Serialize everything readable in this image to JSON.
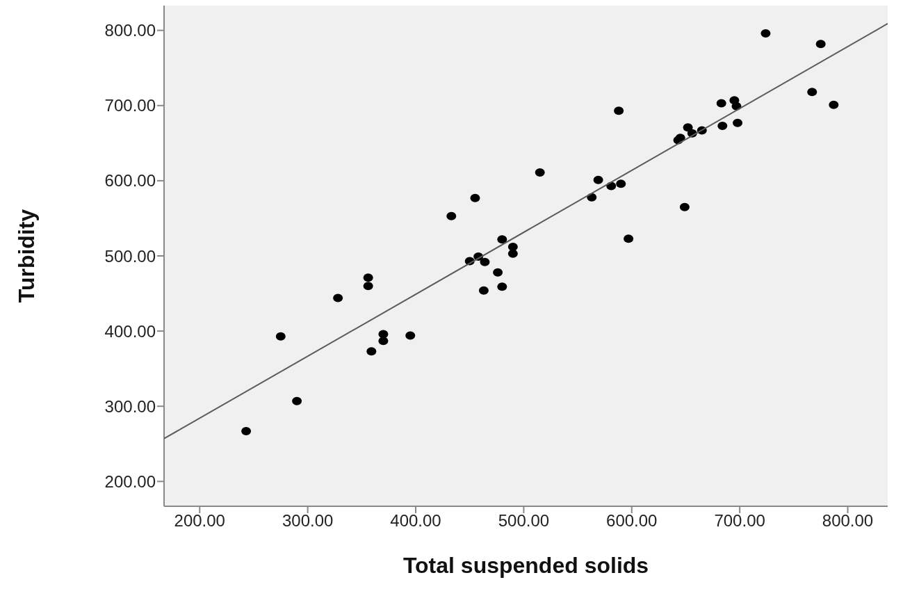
{
  "chart_data": {
    "type": "scatter",
    "xlabel": "Total suspended solids",
    "ylabel": "Turbidity",
    "xlim": [
      167,
      837
    ],
    "ylim": [
      167,
      833
    ],
    "xticks": [
      {
        "value": 200,
        "label": "200.00"
      },
      {
        "value": 300,
        "label": "300.00"
      },
      {
        "value": 400,
        "label": "400.00"
      },
      {
        "value": 500,
        "label": "500.00"
      },
      {
        "value": 600,
        "label": "600.00"
      },
      {
        "value": 700,
        "label": "700.00"
      },
      {
        "value": 800,
        "label": "800.00"
      }
    ],
    "yticks": [
      {
        "value": 200,
        "label": "200.00"
      },
      {
        "value": 300,
        "label": "300.00"
      },
      {
        "value": 400,
        "label": "400.00"
      },
      {
        "value": 500,
        "label": "500.00"
      },
      {
        "value": 600,
        "label": "600.00"
      },
      {
        "value": 700,
        "label": "700.00"
      },
      {
        "value": 800,
        "label": "800.00"
      }
    ],
    "grid": false,
    "legend": false,
    "series": [
      {
        "type": "scatter",
        "marker": "circle",
        "color": "#000000",
        "x": [
          243,
          275,
          290,
          328,
          356,
          356,
          359,
          370,
          370,
          395,
          433,
          455,
          515,
          588,
          724,
          775,
          767,
          787,
          683,
          695,
          697,
          684,
          698,
          643,
          645,
          652,
          656,
          665,
          649,
          597,
          569,
          563,
          581,
          590,
          450,
          458,
          464,
          480,
          490,
          490,
          476,
          463,
          480
        ],
        "values": [
          267,
          393,
          307,
          444,
          460,
          471,
          373,
          396,
          387,
          394,
          553,
          577,
          611,
          693,
          796,
          782,
          718,
          701,
          703,
          707,
          699,
          673,
          677,
          654,
          657,
          671,
          663,
          667,
          565,
          523,
          601,
          578,
          593,
          596,
          493,
          499,
          492,
          522,
          512,
          503,
          478,
          454,
          459
        ]
      },
      {
        "type": "line",
        "marker": "none",
        "line_style": "solid",
        "color": "#5a5a5a",
        "x": [
          167,
          837
        ],
        "values": [
          257,
          809
        ]
      }
    ]
  }
}
